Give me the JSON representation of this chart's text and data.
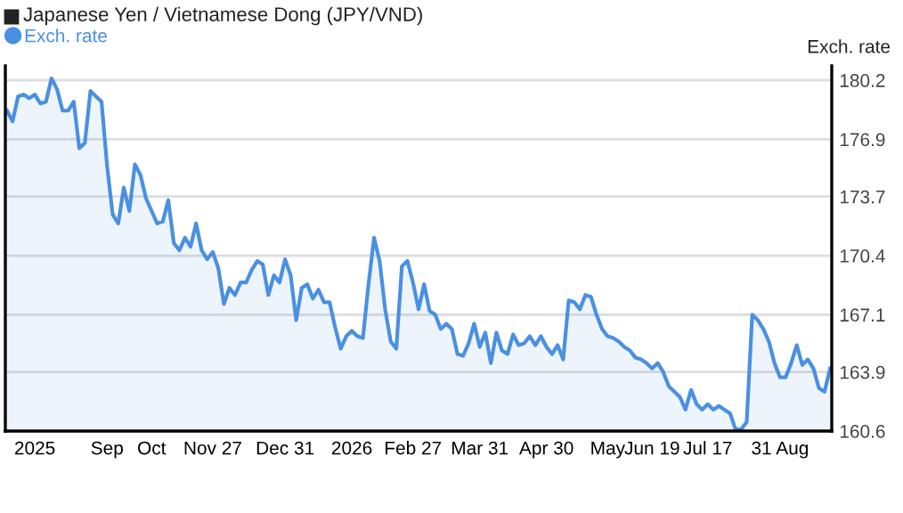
{
  "chart_data": {
    "type": "area",
    "title": "Japanese Yen / Vietnamese Dong (JPY/VND)",
    "ylabel": "Exch. rate",
    "legend": "top left",
    "grid": "y",
    "marker": "none",
    "line_style": "solid",
    "ylim": [
      160.6,
      181.0
    ],
    "yticks": [
      160.6,
      163.9,
      167.1,
      170.4,
      173.7,
      176.9,
      180.2
    ],
    "categories": [
      null,
      null,
      null,
      null,
      null,
      "2025",
      null,
      null,
      null,
      null,
      null,
      null,
      null,
      null,
      null,
      null,
      null,
      null,
      "Sep",
      null,
      null,
      null,
      null,
      null,
      null,
      null,
      "Oct",
      null,
      null,
      null,
      null,
      null,
      null,
      null,
      null,
      null,
      null,
      "Nov 27",
      null,
      null,
      null,
      null,
      null,
      null,
      null,
      null,
      null,
      null,
      null,
      null,
      "Dec 31",
      null,
      null,
      null,
      null,
      null,
      null,
      null,
      null,
      null,
      null,
      null,
      "2026",
      null,
      null,
      null,
      null,
      null,
      null,
      null,
      null,
      null,
      null,
      "Feb 27",
      null,
      null,
      null,
      null,
      null,
      null,
      null,
      null,
      null,
      null,
      null,
      "Mar 31",
      null,
      null,
      null,
      null,
      null,
      null,
      null,
      null,
      null,
      null,
      null,
      "Apr 30",
      null,
      null,
      null,
      null,
      null,
      null,
      null,
      null,
      null,
      null,
      "May",
      null,
      null,
      null,
      null,
      null,
      null,
      null,
      "Jun 19",
      null,
      null,
      null,
      null,
      null,
      null,
      null,
      null,
      null,
      "Jul 17",
      null,
      null,
      null,
      null,
      null,
      null,
      null,
      null,
      null,
      null,
      null,
      null,
      "31 Aug",
      null,
      null,
      null,
      null,
      null,
      null,
      null,
      null,
      null
    ],
    "series": [
      {
        "name": "Exch. rate",
        "color": "#4a90e2",
        "values": [
          178.5,
          177.9,
          179.3,
          179.4,
          179.2,
          179.4,
          178.9,
          179.0,
          180.3,
          179.7,
          178.5,
          178.5,
          179.0,
          176.4,
          176.7,
          179.6,
          179.3,
          179.0,
          175.4,
          172.7,
          172.2,
          174.2,
          172.9,
          175.5,
          174.9,
          173.6,
          172.9,
          172.2,
          172.3,
          173.5,
          171.1,
          170.7,
          171.4,
          170.9,
          172.2,
          170.7,
          170.2,
          170.6,
          169.7,
          167.7,
          168.6,
          168.2,
          168.9,
          168.9,
          169.6,
          170.1,
          169.9,
          168.2,
          169.3,
          168.9,
          170.2,
          169.3,
          166.8,
          168.6,
          168.8,
          168.0,
          168.5,
          167.8,
          167.8,
          166.4,
          165.2,
          165.9,
          166.2,
          165.9,
          165.8,
          168.8,
          171.4,
          170.1,
          167.4,
          165.6,
          165.2,
          169.8,
          170.1,
          168.9,
          167.4,
          168.8,
          167.3,
          167.1,
          166.3,
          166.6,
          166.3,
          164.9,
          164.8,
          165.5,
          166.6,
          165.3,
          166.1,
          164.4,
          166.1,
          165.1,
          164.9,
          166.0,
          165.4,
          165.5,
          165.9,
          165.4,
          165.9,
          165.3,
          164.9,
          165.4,
          164.6,
          167.9,
          167.8,
          167.4,
          168.2,
          168.1,
          167.1,
          166.3,
          165.9,
          165.8,
          165.6,
          165.3,
          165.1,
          164.7,
          164.6,
          164.4,
          164.1,
          164.4,
          163.9,
          163.1,
          162.8,
          162.5,
          161.8,
          162.9,
          162.1,
          161.8,
          162.1,
          161.8,
          162.0,
          161.8,
          161.6,
          160.7,
          160.7,
          161.1,
          167.1,
          166.8,
          166.3,
          165.6,
          164.4,
          163.6,
          163.6,
          164.4,
          165.4,
          164.3,
          164.6,
          164.1,
          163.0,
          162.8,
          164.1
        ]
      }
    ]
  }
}
